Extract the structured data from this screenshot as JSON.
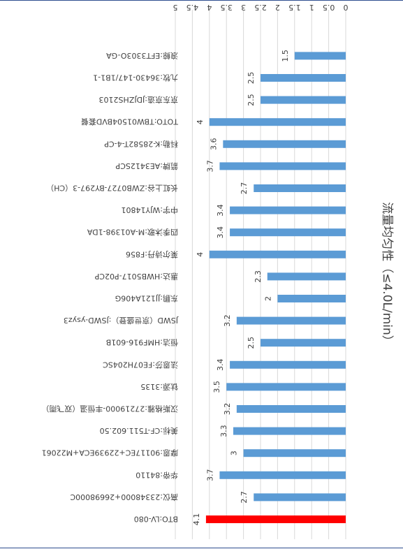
{
  "chart_data": {
    "type": "bar",
    "orientation": "horizontal",
    "rendered_rotation_deg": 180,
    "title": "流量均匀性（≤4.0L/min）",
    "xlim": [
      0,
      5
    ],
    "ticks": [
      0,
      0.5,
      1,
      1.5,
      2,
      2.5,
      3,
      3.5,
      4,
      4.5,
      5
    ],
    "grid": true,
    "categories": [
      "BTO:LV-080",
      "高仪:23348000+26698000C",
      "华帝:84110",
      "摩恩:90117EC+22939ECA+M22061",
      "美标:CF-T511.602.50",
      "汉斯格雅:27219000-丰恒温（双飞雨）",
      "钛源:3135",
      "法恩莎:FE07H204SC",
      "恒洁:HMF916-601B",
      "JSWD（京世盛登）:JSWD-ysyz3",
      "东鹏:JJ121A406G",
      "惠达:HWB5017-P02CP",
      "莱尔诗丹:F856",
      "四季沐歌:M-A01398-1DA",
      "中宇:WJY14801",
      "长虹上谷:ZWB0727-BY297-3（CH）",
      "箭牌:AE3412SCP",
      "科勒:K-28582T-4-CP",
      "TOTO:TBW01504BVD套餐",
      "京东京造:JDJZHS2103",
      "九牧:36430-147/1B1-1",
      "浪鲸:EFT3303O-GA"
    ],
    "values": [
      4.1,
      2.7,
      3.7,
      3,
      3.3,
      3.2,
      3.5,
      3.4,
      2.5,
      3.2,
      2,
      2.3,
      4,
      3.4,
      3.4,
      2.7,
      3.7,
      3.6,
      4,
      2.5,
      2.5,
      1.5
    ],
    "data_labels": [
      "4.1",
      "2.7",
      "3.7",
      "3",
      "3.3",
      "3.2",
      "3.5",
      "3.4",
      "2.5",
      "3.2",
      "2",
      "2.3",
      "4",
      "3.4",
      "3.4",
      "2.7",
      "3.7",
      "3.6",
      "4",
      "2.5",
      "2.5",
      "1.5"
    ],
    "highlight_index": 0,
    "colors": {
      "bar": "#5b9bd5",
      "highlight": "#ff0000",
      "grid": "#d9d9d9",
      "text": "#404040",
      "frame": "#2f4f8f"
    }
  }
}
